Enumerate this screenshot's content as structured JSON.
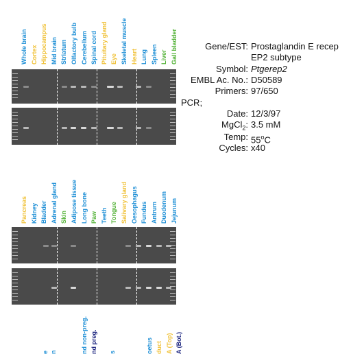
{
  "panel1": {
    "lanes": [
      {
        "label": "Whole brain",
        "color": "blue"
      },
      {
        "label": "Cortex",
        "color": "yellow"
      },
      {
        "label": "Hippocampus",
        "color": "yellow"
      },
      {
        "label": "Mid brain",
        "color": "blue"
      },
      {
        "label": "Striatum",
        "color": "blue"
      },
      {
        "label": "Olfactory bulb",
        "color": "blue"
      },
      {
        "label": "Cerebellum",
        "color": "blue"
      },
      {
        "label": "Spinal cord",
        "color": "blue"
      },
      {
        "label": "Pituitary gland",
        "color": "yellow"
      },
      {
        "label": "Eye",
        "color": "yellow"
      },
      {
        "label": "Skeletal muscle",
        "color": "blue"
      },
      {
        "label": "Heart",
        "color": "yellow"
      },
      {
        "label": "Lung",
        "color": "blue"
      },
      {
        "label": "Spleen",
        "color": "blue"
      },
      {
        "label": "Liver",
        "color": "green"
      },
      {
        "label": "Gall bladder",
        "color": "green"
      }
    ]
  },
  "panel2": {
    "lanes": [
      {
        "label": "Pancreas",
        "color": "yellow"
      },
      {
        "label": "Kidney",
        "color": "blue"
      },
      {
        "label": "Bladder",
        "color": "blue"
      },
      {
        "label": "Adrenal gland",
        "color": "blue"
      },
      {
        "label": "Skin",
        "color": "green"
      },
      {
        "label": "Adipose tissue",
        "color": "blue"
      },
      {
        "label": "Long bone",
        "color": "blue"
      },
      {
        "label": "Paw",
        "color": "green"
      },
      {
        "label": "Teeth",
        "color": "blue"
      },
      {
        "label": "Tongue",
        "color": "green"
      },
      {
        "label": "Salivary gland",
        "color": "yellow"
      },
      {
        "label": "Oesophagus",
        "color": "blue"
      },
      {
        "label": "Fundus",
        "color": "blue"
      },
      {
        "label": "Antrum",
        "color": "blue"
      },
      {
        "label": "Duodenum",
        "color": "blue"
      },
      {
        "label": "Jejunum",
        "color": "blue"
      }
    ]
  },
  "panel3": {
    "partial_labels": [
      {
        "label": "e",
        "color": "blue"
      },
      {
        "label": "n",
        "color": "blue"
      },
      {
        "label": "nd non-preg.",
        "color": "blue"
      },
      {
        "label": "nd preg.",
        "color": "navy"
      },
      {
        "label": "s",
        "color": "blue"
      },
      {
        "label": "oetus",
        "color": "blue"
      },
      {
        "label": "duct",
        "color": "yellow"
      },
      {
        "label": "A (Top)",
        "color": "yellow"
      },
      {
        "label": "A (Bot.)",
        "color": "navy"
      }
    ]
  },
  "info": {
    "gene_key": "Gene/EST:",
    "gene_val_1": "Prostaglandin E recep",
    "gene_val_2": "EP2 subtype",
    "symbol_key": "Symbol:",
    "symbol_val": "Ptgerep2",
    "embl_key": "EMBL Ac. No.:",
    "embl_val": "D50589",
    "primers_key": "Primers:",
    "primers_val": "97/650",
    "pcr_key": "PCR;",
    "date_key": "Date:",
    "date_val": "12/3/97",
    "mgcl_key_a": "MgCl",
    "mgcl_key_sub": "2",
    "mgcl_key_b": ":",
    "mgcl_val": "3.5 mM",
    "temp_key": "Temp:",
    "temp_val_a": "55",
    "temp_val_sup": "o",
    "temp_val_b": "C",
    "cycles_key": "Cycles:",
    "cycles_val": "x40"
  },
  "colors": {
    "blue": "#1e8fd6",
    "yellow": "#f0c23a",
    "green": "#56b33a",
    "navy": "#1a237e",
    "gel": "#4a4a4a"
  }
}
